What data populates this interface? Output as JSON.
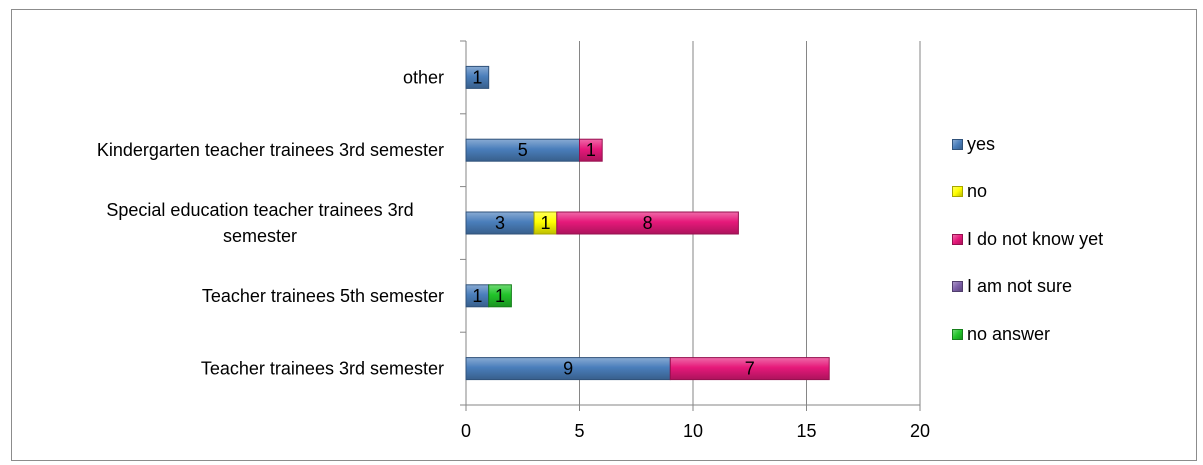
{
  "chart_data": {
    "type": "bar",
    "orientation": "horizontal",
    "stacked": true,
    "categories": [
      "Teacher trainees 3rd semester",
      "Teacher trainees 5th semester",
      "Special education teacher trainees 3rd semester",
      "Kindergarten teacher trainees 3rd semester",
      "other"
    ],
    "series": [
      {
        "name": "yes",
        "color": "#4a7ebb",
        "values": [
          9,
          1,
          3,
          5,
          1
        ]
      },
      {
        "name": "no",
        "color": "#ffff00",
        "values": [
          0,
          0,
          1,
          0,
          0
        ]
      },
      {
        "name": "I do not know yet",
        "color": "#e6197a",
        "values": [
          7,
          0,
          8,
          1,
          0
        ]
      },
      {
        "name": "I am not sure",
        "color": "#7d5fa8",
        "values": [
          0,
          0,
          0,
          0,
          0
        ]
      },
      {
        "name": "no answer",
        "color": "#22c42a",
        "values": [
          0,
          1,
          0,
          0,
          0
        ]
      }
    ],
    "xlim": [
      0,
      20
    ],
    "ticks": [
      0,
      5,
      10,
      15,
      20
    ],
    "grid": true,
    "legend_position": "right"
  }
}
